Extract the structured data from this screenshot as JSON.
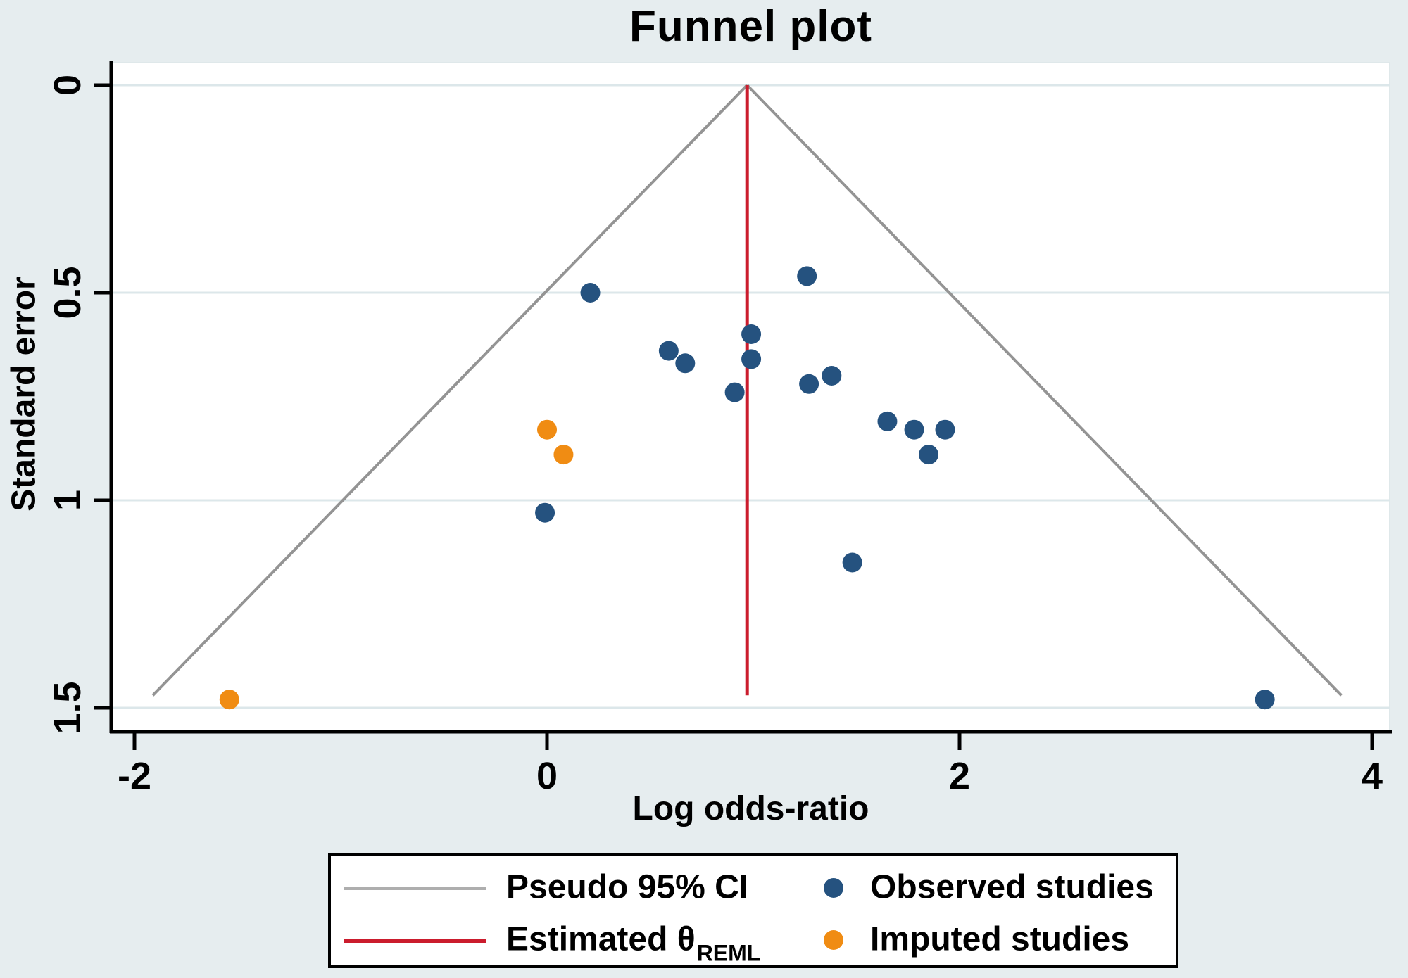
{
  "chart_data": {
    "type": "scatter",
    "title": "Funnel plot",
    "xlabel": "Log odds-ratio",
    "ylabel": "Standard error",
    "x_ticks": [
      {
        "value": -2,
        "label": "-2"
      },
      {
        "value": 0,
        "label": "0"
      },
      {
        "value": 2,
        "label": "2"
      },
      {
        "value": 4,
        "label": "4"
      }
    ],
    "y_ticks": [
      {
        "value": 0,
        "label": "0"
      },
      {
        "value": 0.5,
        "label": "0.5"
      },
      {
        "value": 1,
        "label": "1"
      },
      {
        "value": 1.5,
        "label": "1.5"
      }
    ],
    "xlim": [
      -2.11,
      4.09
    ],
    "ylim": [
      -0.06,
      1.56
    ],
    "y_axis_direction": "standard-error-increasing-downward",
    "grid": true,
    "gridline_color": "#dce7ea",
    "plot_background": "#ffffff",
    "page_background": "#e6edef",
    "estimate": {
      "theta": 0.97,
      "method_subscript": "REML",
      "line_color": "#cb1c2d"
    },
    "funnel": {
      "ci_multiplier": 1.96,
      "se_extent": 1.47,
      "apex_se": 0,
      "color": "#949494"
    },
    "series": [
      {
        "name": "Observed studies",
        "marker_color": "#25527f",
        "points": [
          [
            0.21,
            0.5
          ],
          [
            0.59,
            0.64
          ],
          [
            0.67,
            0.67
          ],
          [
            0.99,
            0.6
          ],
          [
            0.99,
            0.66
          ],
          [
            0.91,
            0.74
          ],
          [
            -0.01,
            1.03
          ],
          [
            1.26,
            0.46
          ],
          [
            1.27,
            0.72
          ],
          [
            1.38,
            0.7
          ],
          [
            1.65,
            0.81
          ],
          [
            1.78,
            0.83
          ],
          [
            1.93,
            0.83
          ],
          [
            1.85,
            0.89
          ],
          [
            1.48,
            1.15
          ],
          [
            3.48,
            1.48
          ]
        ]
      },
      {
        "name": "Imputed studies",
        "marker_color": "#f08c13",
        "points": [
          [
            0.0,
            0.83
          ],
          [
            0.08,
            0.89
          ],
          [
            -1.54,
            1.48
          ]
        ]
      }
    ]
  },
  "legend": {
    "items": [
      {
        "swatch": "line",
        "color": "#aeaeae",
        "label": "Pseudo 95% CI",
        "sublabel": ""
      },
      {
        "swatch": "line",
        "color": "#cb1c2d",
        "label": "Estimated θ",
        "sublabel": "REML"
      },
      {
        "swatch": "dot",
        "color": "#25527f",
        "label": "Observed studies",
        "sublabel": ""
      },
      {
        "swatch": "dot",
        "color": "#f08c13",
        "label": "Imputed studies",
        "sublabel": ""
      }
    ]
  }
}
